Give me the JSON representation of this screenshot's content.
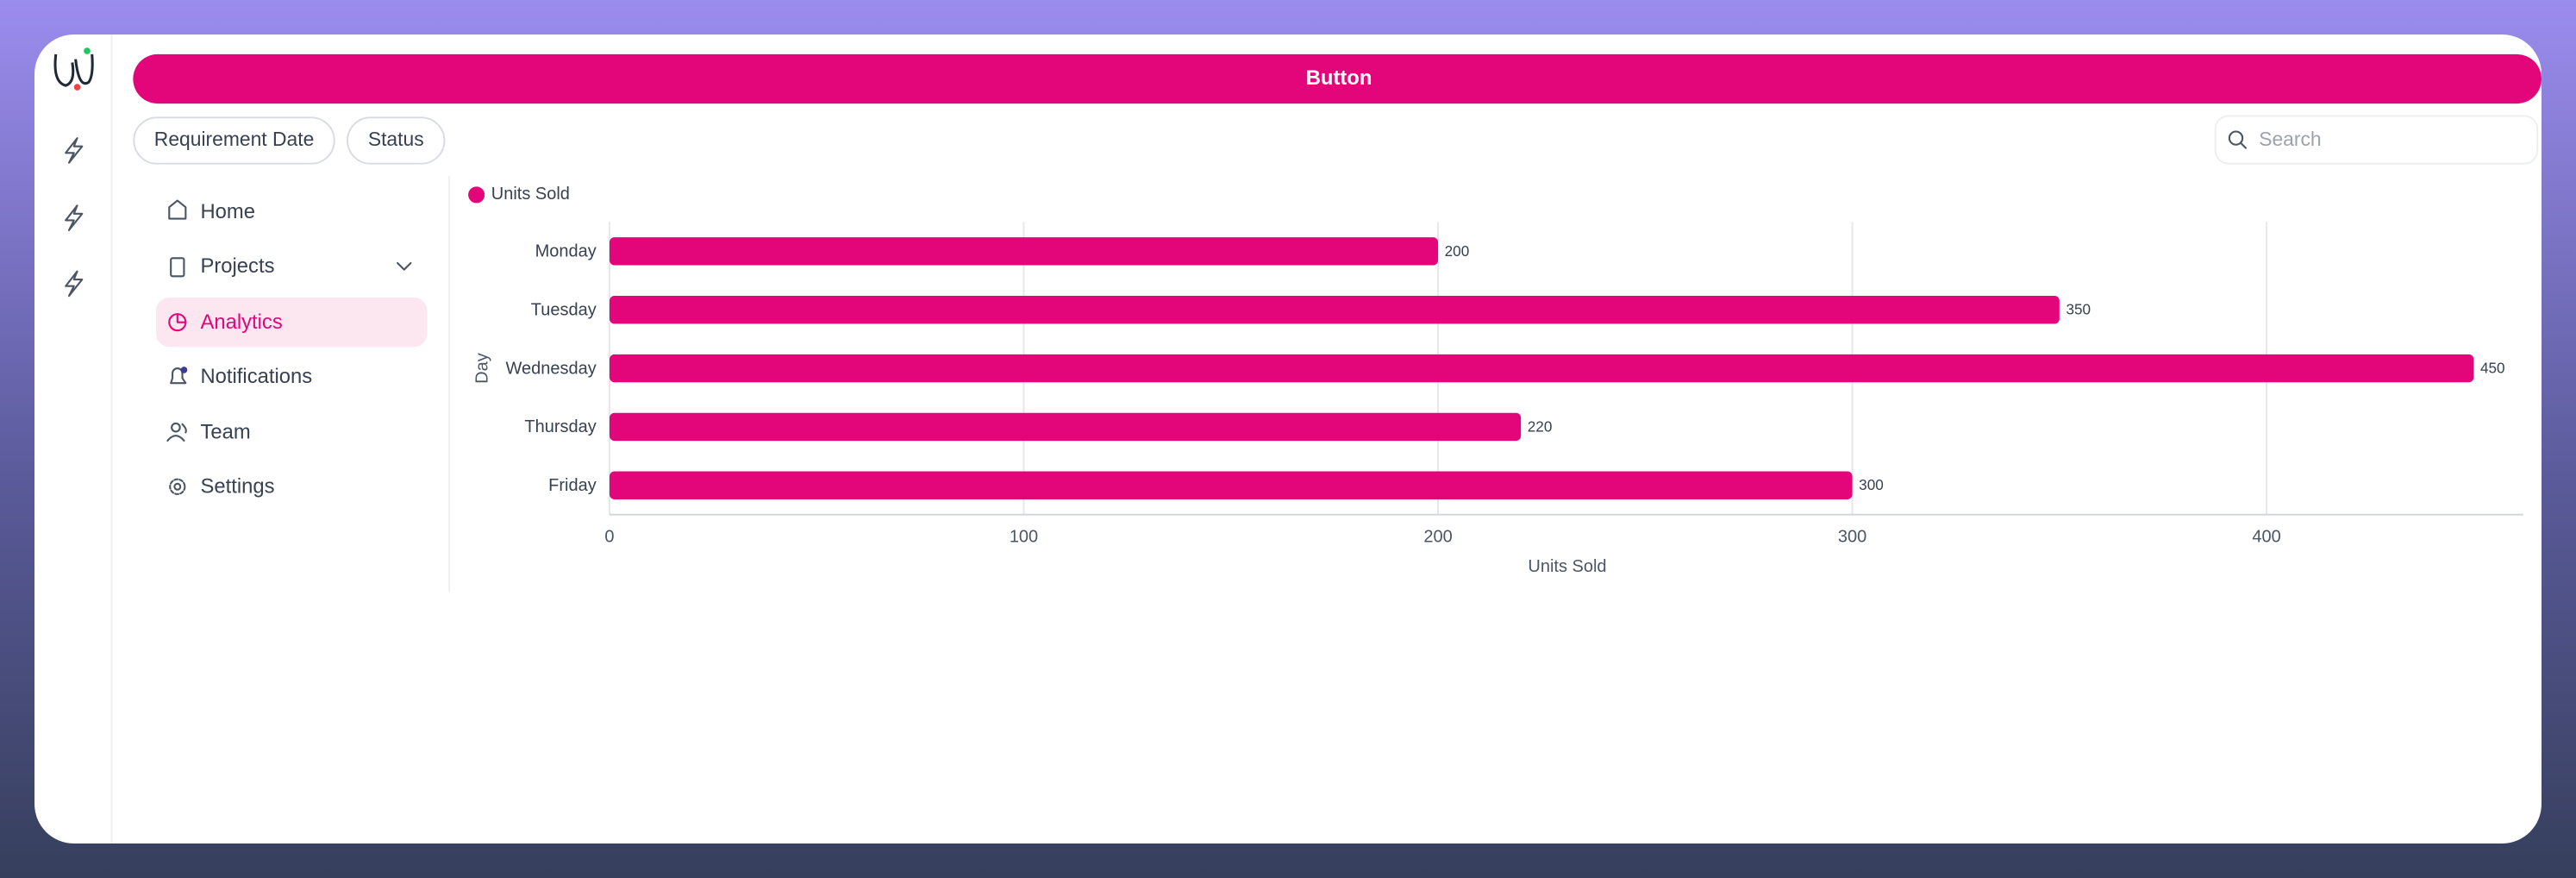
{
  "header": {
    "button": "Button",
    "filters": [
      "Requirement Date",
      "Status"
    ],
    "search_placeholder": "Search"
  },
  "nav": {
    "items": [
      "Home",
      "Projects",
      "Analytics",
      "Notifications",
      "Team",
      "Settings"
    ],
    "active": 2
  },
  "chart_data": {
    "type": "bar",
    "orientation": "horizontal",
    "legend": "Units Sold",
    "x_label": "Units Sold",
    "y_label": "Day",
    "categories": [
      "Monday",
      "Tuesday",
      "Wednesday",
      "Thursday",
      "Friday"
    ],
    "values": [
      200,
      350,
      450,
      220,
      300
    ],
    "color": "#e3067a",
    "xlim": [
      0,
      462
    ],
    "xticks": [
      0,
      100,
      200,
      300,
      400
    ],
    "grid": true
  }
}
